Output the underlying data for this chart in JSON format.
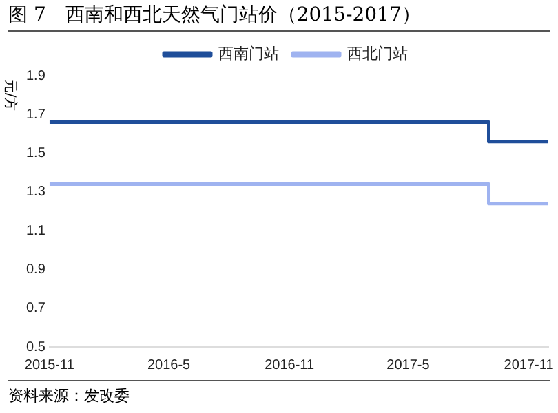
{
  "chart_data": {
    "type": "step",
    "title": "图 7　西南和西北天然气门站价（2015-2017）",
    "ylabel": "元/方",
    "annotations": [
      "资料来源：发改委"
    ],
    "x": [
      "2015-11-01",
      "2017-09-01",
      "2017-12-01"
    ],
    "series": [
      {
        "name": "西南门站",
        "color": "#1f4e9a",
        "values": [
          1.66,
          1.56,
          1.56
        ]
      },
      {
        "name": "西北门站",
        "color": "#9fb3f0",
        "values": [
          1.34,
          1.24,
          1.24
        ]
      }
    ],
    "xlim": [
      "2015-11-01",
      "2017-12-01"
    ],
    "xticks": [
      {
        "value": "2015-11-01",
        "label": "2015-11"
      },
      {
        "value": "2016-05-01",
        "label": "2016-5"
      },
      {
        "value": "2016-11-01",
        "label": "2016-11"
      },
      {
        "value": "2017-05-01",
        "label": "2017-5"
      },
      {
        "value": "2017-11-01",
        "label": "2017-11"
      }
    ],
    "ylim": [
      0.5,
      1.9
    ],
    "yticks": [
      0.5,
      0.7,
      0.9,
      1.1,
      1.3,
      1.5,
      1.7,
      1.9
    ],
    "grid": false,
    "legend": "top",
    "marker": "none",
    "line_style": "solid"
  }
}
